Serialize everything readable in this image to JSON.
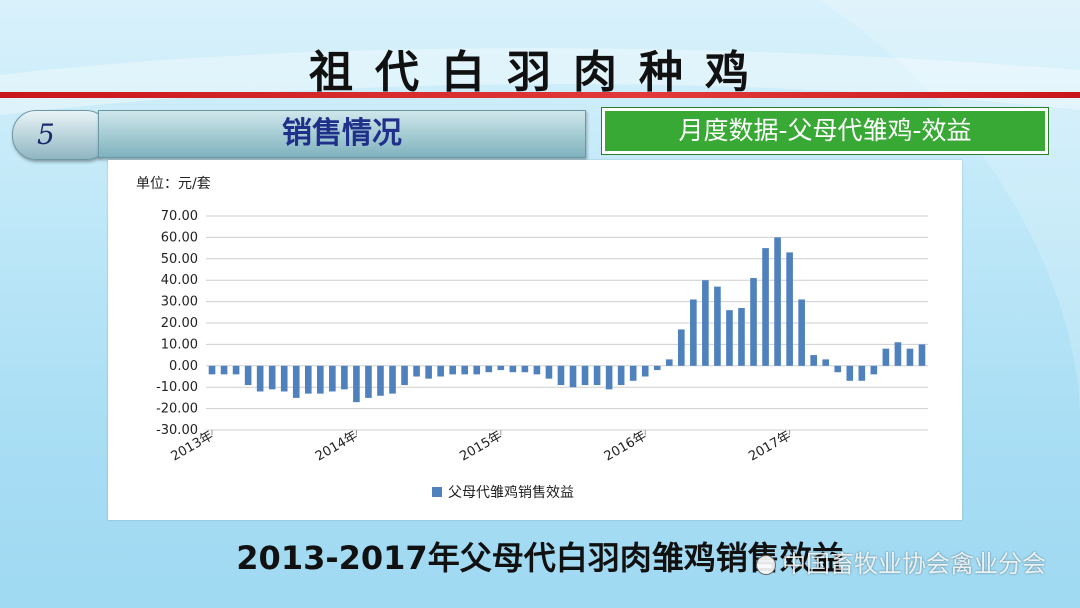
{
  "slide": {
    "title": "祖代白羽肉种鸡",
    "section_number": "5",
    "section_title": "销售情况",
    "highlight_box": "月度数据-父母代雏鸡-效益",
    "caption": "2013-2017年父母代白羽肉雏鸡销售效益",
    "watermark": "中国畜牧业协会禽业分会"
  },
  "colors": {
    "bar": "#4f81bd",
    "title_line": "#c8161d",
    "highlight_box_bg": "#39a935"
  },
  "chart_data": {
    "type": "bar",
    "unit_label": "单位：元/套",
    "ylim": [
      -30,
      70
    ],
    "yticks": [
      "70.00",
      "60.00",
      "50.00",
      "40.00",
      "30.00",
      "20.00",
      "10.00",
      "0.00",
      "-10.00",
      "-20.00",
      "-30.00"
    ],
    "x_labels": [
      {
        "index": 0,
        "label": "2013年"
      },
      {
        "index": 12,
        "label": "2014年"
      },
      {
        "index": 24,
        "label": "2015年"
      },
      {
        "index": 36,
        "label": "2016年"
      },
      {
        "index": 48,
        "label": "2017年"
      }
    ],
    "grid": true,
    "legend_position": "bottom",
    "series": [
      {
        "name": "父母代雏鸡销售效益",
        "values": [
          -4,
          -4,
          -4,
          -9,
          -12,
          -11,
          -12,
          -15,
          -13,
          -13,
          -12,
          -11,
          -17,
          -15,
          -14,
          -13,
          -9,
          -5,
          -6,
          -5,
          -4,
          -4,
          -4,
          -3,
          -2,
          -3,
          -3,
          -4,
          -6,
          -9,
          -10,
          -9,
          -9,
          -11,
          -9,
          -7,
          -5,
          -2,
          3,
          17,
          31,
          40,
          37,
          26,
          27,
          41,
          55,
          60,
          53,
          31,
          5,
          3,
          -3,
          -7,
          -7,
          -4,
          8,
          11,
          8,
          10
        ]
      }
    ]
  }
}
